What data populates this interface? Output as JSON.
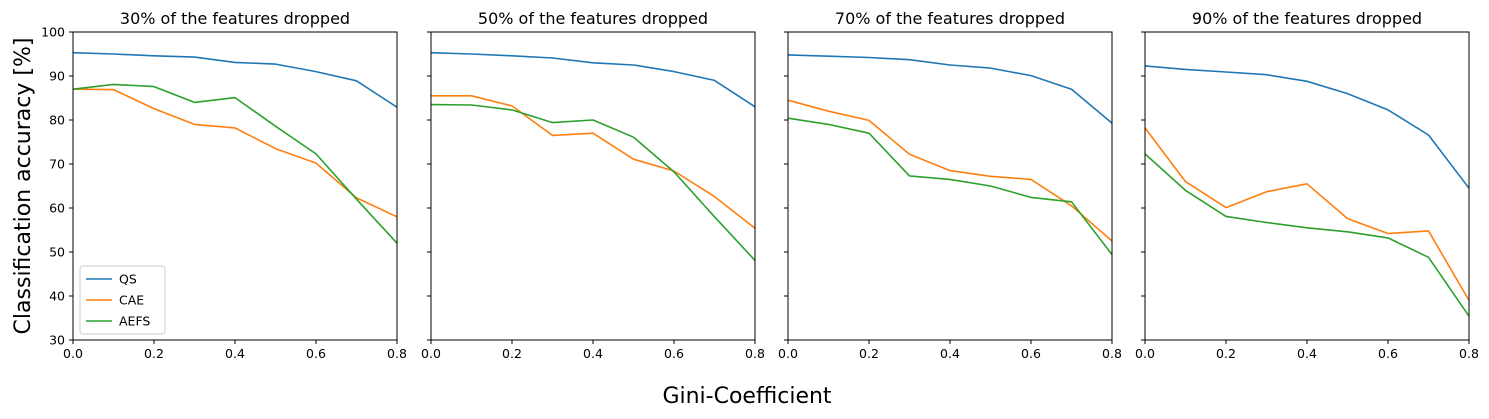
{
  "figure": {
    "ylabel": "Classification accuracy [%]",
    "xlabel": "Gini-Coefficient"
  },
  "colors": {
    "QS": "#1f77b4",
    "CAE": "#ff7f0e",
    "AEFS": "#2ca02c"
  },
  "chart_data": [
    {
      "type": "line",
      "title": "30% of the features dropped",
      "xlim": [
        0,
        0.8
      ],
      "ylim": [
        30,
        100
      ],
      "xticks": [
        "0.0",
        "0.2",
        "0.4",
        "0.6",
        "0.8"
      ],
      "yticks": [
        "30",
        "40",
        "50",
        "60",
        "70",
        "80",
        "90",
        "100"
      ],
      "grid": false,
      "legend": "lower-left",
      "x": [
        0.0,
        0.1,
        0.2,
        0.3,
        0.4,
        0.5,
        0.6,
        0.7,
        0.8
      ],
      "series": [
        {
          "name": "QS",
          "values": [
            95.3,
            95.0,
            94.6,
            94.3,
            93.1,
            92.7,
            91.0,
            88.9,
            82.9
          ]
        },
        {
          "name": "CAE",
          "values": [
            87.0,
            86.9,
            82.6,
            79.0,
            78.2,
            73.5,
            70.2,
            62.3,
            58.0
          ]
        },
        {
          "name": "AEFS",
          "values": [
            87.0,
            88.1,
            87.6,
            84.0,
            85.1,
            78.6,
            72.3,
            62.0,
            52.0
          ]
        }
      ]
    },
    {
      "type": "line",
      "title": "50% of the features dropped",
      "xlim": [
        0,
        0.8
      ],
      "ylim": [
        30,
        100
      ],
      "xticks": [
        "0.0",
        "0.2",
        "0.4",
        "0.6",
        "0.8"
      ],
      "yticks": [
        "30",
        "40",
        "50",
        "60",
        "70",
        "80",
        "90",
        "100"
      ],
      "grid": false,
      "x": [
        0.0,
        0.1,
        0.2,
        0.3,
        0.4,
        0.5,
        0.6,
        0.7,
        0.8
      ],
      "series": [
        {
          "name": "QS",
          "values": [
            95.3,
            95.0,
            94.6,
            94.1,
            93.0,
            92.5,
            91.0,
            89.0,
            83.0
          ]
        },
        {
          "name": "CAE",
          "values": [
            85.5,
            85.5,
            83.2,
            76.5,
            77.0,
            71.1,
            68.4,
            62.6,
            55.4
          ]
        },
        {
          "name": "AEFS",
          "values": [
            83.5,
            83.4,
            82.3,
            79.4,
            80.0,
            76.1,
            68.2,
            58.0,
            48.1
          ]
        }
      ]
    },
    {
      "type": "line",
      "title": "70% of the features dropped",
      "xlim": [
        0,
        0.8
      ],
      "ylim": [
        30,
        100
      ],
      "xticks": [
        "0.0",
        "0.2",
        "0.4",
        "0.6",
        "0.8"
      ],
      "yticks": [
        "30",
        "40",
        "50",
        "60",
        "70",
        "80",
        "90",
        "100"
      ],
      "grid": false,
      "x": [
        0.0,
        0.1,
        0.2,
        0.3,
        0.4,
        0.5,
        0.6,
        0.7,
        0.8
      ],
      "series": [
        {
          "name": "QS",
          "values": [
            94.8,
            94.5,
            94.2,
            93.7,
            92.5,
            91.8,
            90.1,
            87.0,
            79.3
          ]
        },
        {
          "name": "CAE",
          "values": [
            84.5,
            82.0,
            79.9,
            72.2,
            68.5,
            67.2,
            66.5,
            60.5,
            52.5
          ]
        },
        {
          "name": "AEFS",
          "values": [
            80.4,
            79.0,
            77.0,
            67.3,
            66.5,
            65.0,
            62.4,
            61.4,
            49.4
          ]
        }
      ]
    },
    {
      "type": "line",
      "title": "90% of the features dropped",
      "xlim": [
        0,
        0.8
      ],
      "ylim": [
        30,
        100
      ],
      "xticks": [
        "0.0",
        "0.2",
        "0.4",
        "0.6",
        "0.8"
      ],
      "yticks": [
        "30",
        "40",
        "50",
        "60",
        "70",
        "80",
        "90",
        "100"
      ],
      "grid": false,
      "x": [
        0.0,
        0.1,
        0.2,
        0.3,
        0.4,
        0.5,
        0.6,
        0.7,
        0.8
      ],
      "series": [
        {
          "name": "QS",
          "values": [
            92.3,
            91.5,
            90.9,
            90.3,
            88.8,
            86.0,
            82.3,
            76.6,
            64.5
          ]
        },
        {
          "name": "CAE",
          "values": [
            78.2,
            66.0,
            60.1,
            63.7,
            65.5,
            57.6,
            54.2,
            54.8,
            39.0
          ]
        },
        {
          "name": "AEFS",
          "values": [
            72.3,
            64.0,
            58.1,
            56.7,
            55.5,
            54.6,
            53.2,
            48.8,
            35.4
          ]
        }
      ]
    }
  ]
}
